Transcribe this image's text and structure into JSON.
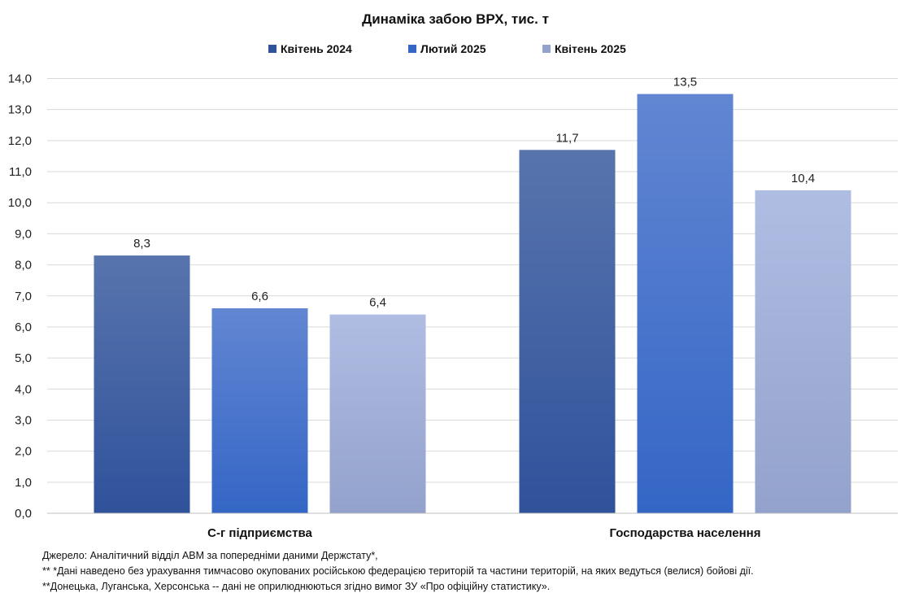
{
  "chart_data": {
    "type": "bar",
    "title": "Динаміка забою ВРХ, тис. т",
    "categories": [
      "С-г підприємства",
      "Господарства населення"
    ],
    "series": [
      {
        "name": "Квітень 2024",
        "values": [
          8.3,
          11.7
        ],
        "color": "#2f529b",
        "color_top": "#5874ad"
      },
      {
        "name": "Лютий 2025",
        "values": [
          6.6,
          13.5
        ],
        "color": "#3466c6",
        "color_top": "#6286d2"
      },
      {
        "name": "Квітень 2025",
        "values": [
          6.4,
          10.4
        ],
        "color": "#93a2cc",
        "color_top": "#b0bde3"
      }
    ],
    "value_labels": [
      [
        "8,3",
        "11,7"
      ],
      [
        "6,6",
        "13,5"
      ],
      [
        "6,4",
        "10,4"
      ]
    ],
    "ylim": [
      0,
      14
    ],
    "y_ticks": [
      "0,0",
      "1,0",
      "2,0",
      "3,0",
      "4,0",
      "5,0",
      "6,0",
      "7,0",
      "8,0",
      "9,0",
      "10,0",
      "11,0",
      "12,0",
      "13,0",
      "14,0"
    ],
    "grid": true,
    "legend_position": "top-center",
    "xlabel": "",
    "ylabel": ""
  },
  "footnotes": {
    "source": "Джерело:  Аналітичний відділ АВМ за попередніми даними Держстату*,",
    "note1": "** *Дані наведено  без урахування тимчасово окупованих російською федерацією територій та частини територій, на яких ведуться  (велися)  бойові дії.",
    "note2": "**Донецька,  Луганська, Херсонська -- дані не оприлюднюються  згідно вимог ЗУ «Про офіційну статистику»."
  }
}
